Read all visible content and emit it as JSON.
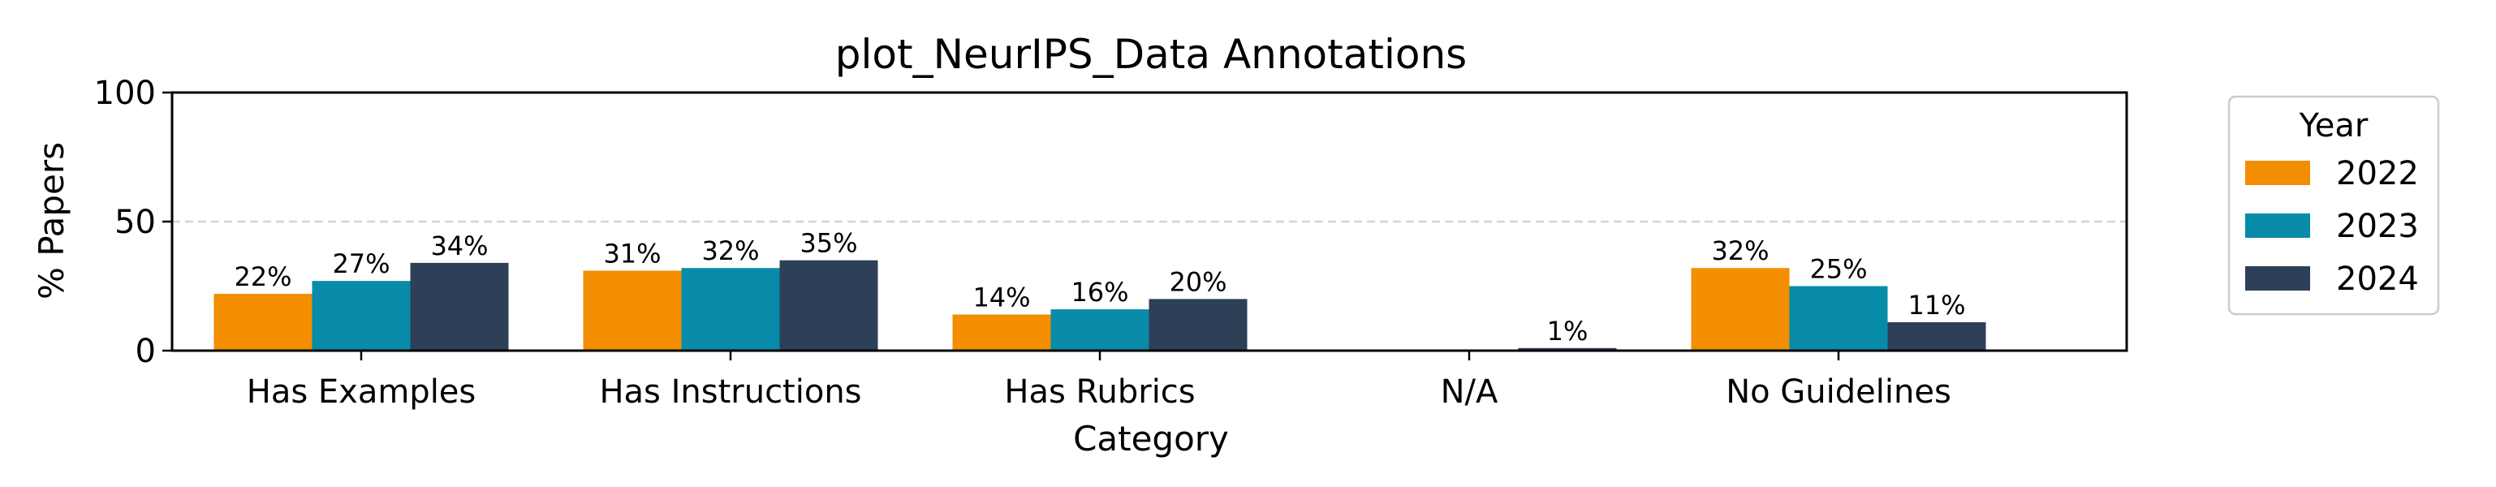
{
  "chart_data": {
    "type": "bar",
    "title": "plot_NeurIPS_Data Annotations",
    "xlabel": "Category",
    "ylabel": "% Papers",
    "ylim": [
      0,
      100
    ],
    "yticks": [
      0,
      50,
      100
    ],
    "grid": "horizontal dashed at 50",
    "categories": [
      "Has Examples",
      "Has Instructions",
      "Has Rubrics",
      "N/A",
      "No Guidelines"
    ],
    "series": [
      {
        "name": "2022",
        "color": "#F28E00",
        "values": [
          22,
          31,
          14,
          0,
          32
        ],
        "labels": [
          "22%",
          "31%",
          "14%",
          "",
          "32%"
        ]
      },
      {
        "name": "2023",
        "color": "#078BA8",
        "values": [
          27,
          32,
          16,
          0,
          25
        ],
        "labels": [
          "27%",
          "32%",
          "16%",
          "",
          "25%"
        ]
      },
      {
        "name": "2024",
        "color": "#2E3F58",
        "values": [
          34,
          35,
          20,
          1,
          11
        ],
        "labels": [
          "34%",
          "35%",
          "20%",
          "1%",
          "11%"
        ]
      }
    ],
    "legend": {
      "title": "Year",
      "position": "outside-right"
    }
  }
}
